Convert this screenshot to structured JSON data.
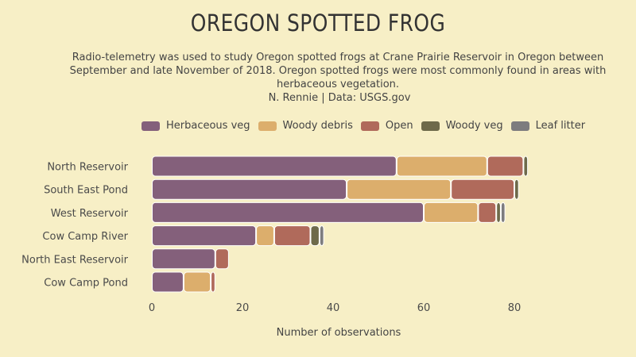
{
  "chart_data": {
    "type": "bar",
    "orientation": "horizontal",
    "stacked": true,
    "title": "OREGON SPOTTED FROG",
    "subtitle": "Radio-telemetry was used to study Oregon spotted frogs at Crane Prairie Reservoir in Oregon between September and late November of 2018. Oregon spotted frogs were most commonly found in areas with herbaceous vegetation.",
    "caption": "N. Rennie | Data: USGS.gov",
    "xlabel": "Number of observations",
    "ylabel": "",
    "xlim": [
      0,
      82
    ],
    "x_ticks": [
      "0",
      "20",
      "40",
      "60",
      "80"
    ],
    "grid": false,
    "legend_position": "top",
    "categories": [
      "North Reservoir",
      "South East Pond",
      "West Reservoir",
      "Cow Camp River",
      "North East Reservoir",
      "Cow Camp Pond"
    ],
    "series": [
      {
        "name": "Herbaceous veg",
        "color": "#84607b",
        "values": [
          54,
          43,
          60,
          23,
          14,
          7
        ]
      },
      {
        "name": "Woody debris",
        "color": "#dcae6c",
        "values": [
          20,
          23,
          12,
          4,
          0,
          6
        ]
      },
      {
        "name": "Open",
        "color": "#b06a5b",
        "values": [
          8,
          14,
          4,
          8,
          3,
          1
        ]
      },
      {
        "name": "Woody veg",
        "color": "#6e6a4a",
        "values": [
          1,
          1,
          1,
          2,
          0,
          0
        ]
      },
      {
        "name": "Leaf litter",
        "color": "#7d7c7e",
        "values": [
          0,
          0,
          1,
          1,
          0,
          0
        ]
      }
    ]
  }
}
